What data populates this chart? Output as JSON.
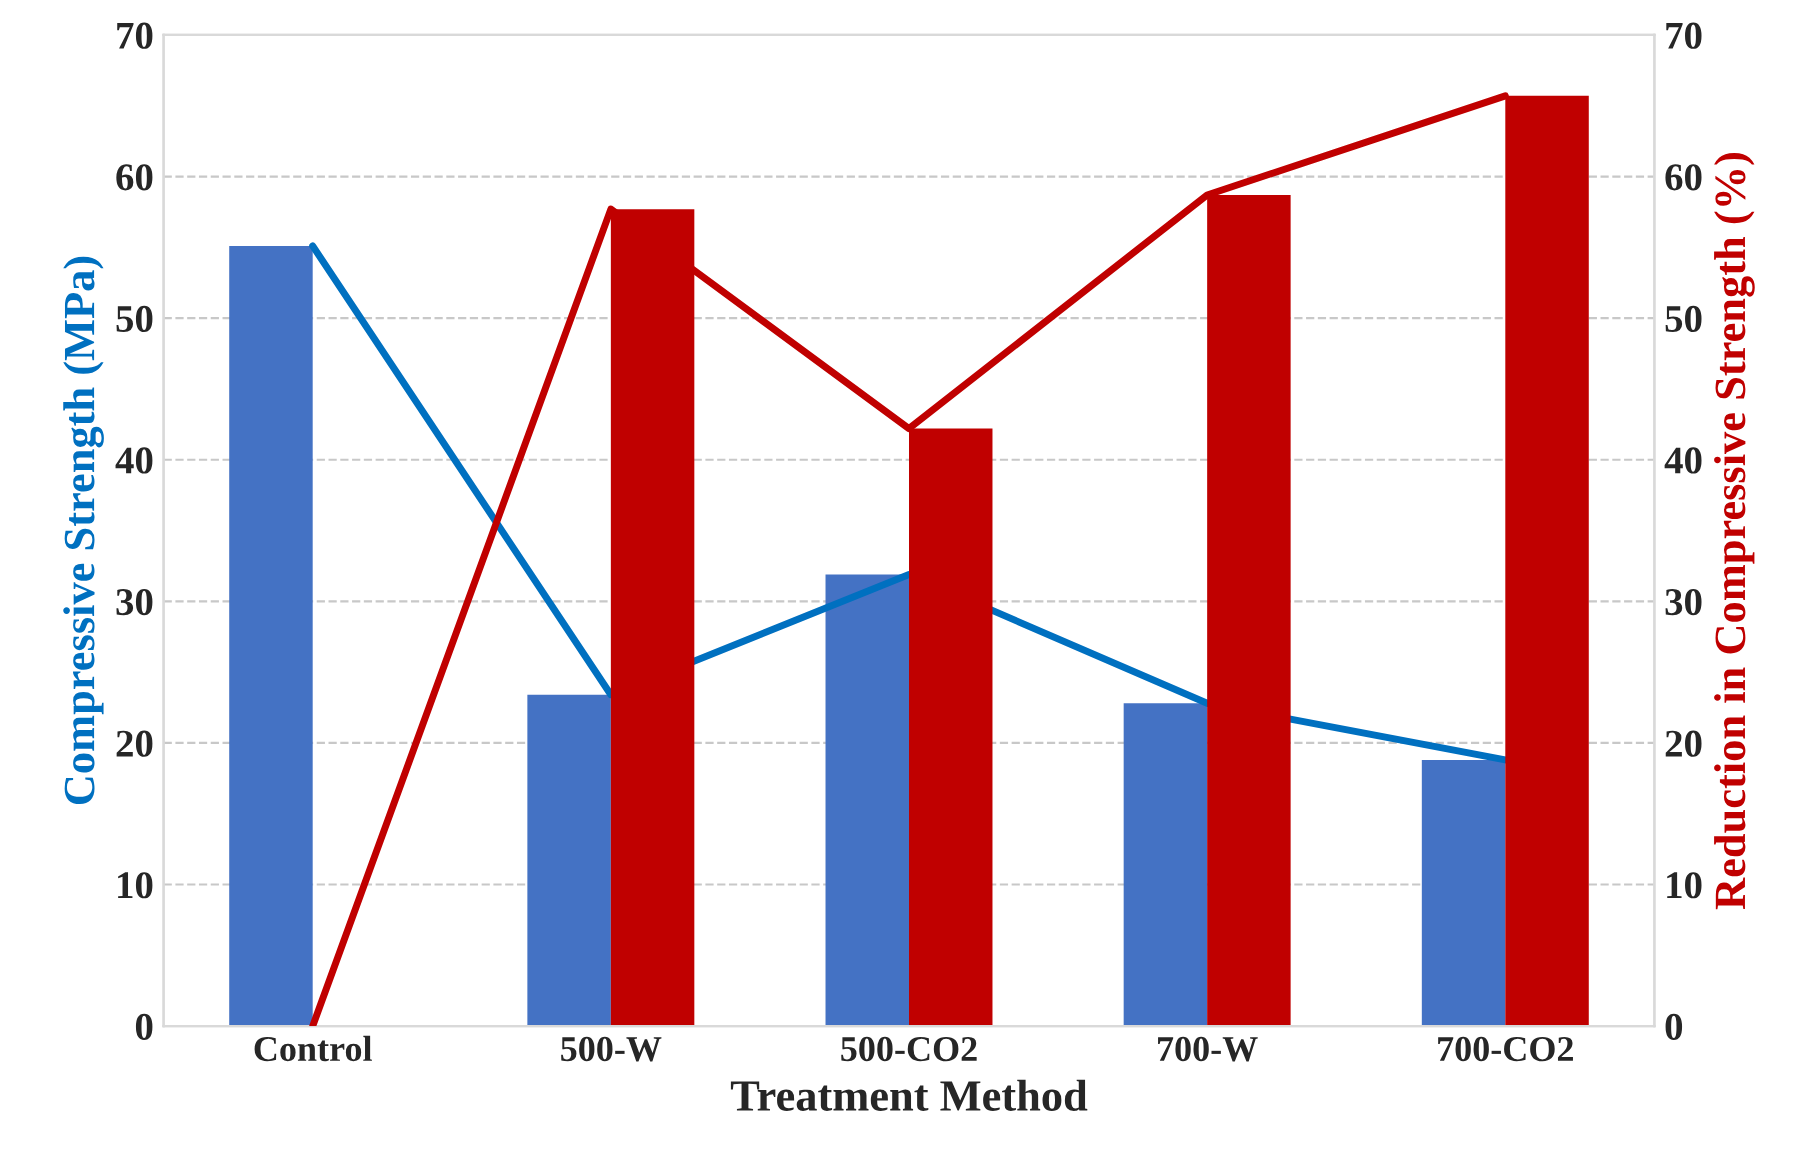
{
  "chart_data": {
    "type": "bar",
    "xlabel": "Treatment Method",
    "ylabel": "Compressive Strength (MPa)",
    "y2label": "Reduction in Compressive Strength (%)",
    "categories": [
      "Control",
      "500-W",
      "500-CO2",
      "700-W",
      "700-CO2"
    ],
    "series": [
      {
        "color": "#4472c4",
        "values": [
          55.1,
          23.4,
          31.9,
          22.8,
          18.8
        ]
      },
      {
        "axis": "y2",
        "color": "#c00000",
        "values": [
          null,
          57.7,
          42.2,
          58.7,
          65.7
        ]
      },
      {
        "type": "line",
        "color": "#0070c0",
        "values": [
          55.1,
          23.4,
          31.9,
          22.8,
          18.8
        ]
      },
      {
        "type": "line",
        "axis": "y2",
        "color": "#c00000",
        "values": [
          0,
          57.7,
          42.2,
          58.7,
          65.7
        ]
      }
    ],
    "ylim": [
      0,
      70
    ],
    "yticks": [
      0,
      10,
      20,
      30,
      40,
      50,
      60,
      70
    ],
    "y2lim": [
      0,
      70
    ],
    "y2ticks": [
      0,
      10,
      20,
      30,
      40,
      50,
      60,
      70
    ],
    "grid": "y",
    "marker": "none",
    "line_style": "solid"
  }
}
